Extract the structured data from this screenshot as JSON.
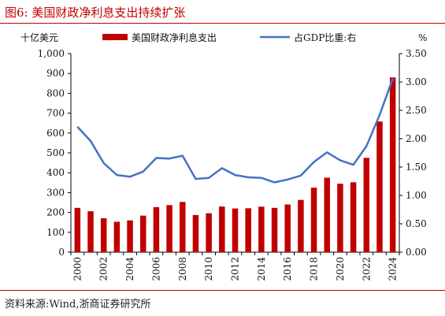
{
  "figure": {
    "title": "图6:  美国财政净利息支出持续扩张",
    "source": "资料来源:Wind,浙商证券研究所"
  },
  "chart_data": {
    "type": "bar",
    "x": [
      2000,
      2001,
      2002,
      2003,
      2004,
      2005,
      2006,
      2007,
      2008,
      2009,
      2010,
      2011,
      2012,
      2013,
      2014,
      2015,
      2016,
      2017,
      2018,
      2019,
      2020,
      2021,
      2022,
      2023,
      2024
    ],
    "x_tick_labels": [
      "2000",
      "2002",
      "2004",
      "2006",
      "2008",
      "2010",
      "2012",
      "2014",
      "2016",
      "2018",
      "2020",
      "2022",
      "2024"
    ],
    "series": [
      {
        "name": "美国财政净利息支出",
        "type": "bar",
        "axis": "left",
        "color": "#c00000",
        "values": [
          223,
          206,
          171,
          153,
          160,
          184,
          227,
          237,
          253,
          187,
          196,
          230,
          220,
          221,
          229,
          223,
          240,
          263,
          325,
          375,
          345,
          352,
          475,
          658,
          880
        ]
      },
      {
        "name": "占GDP比重:右",
        "type": "line",
        "axis": "right",
        "color": "#4472c4",
        "values": [
          2.21,
          1.96,
          1.57,
          1.36,
          1.33,
          1.42,
          1.66,
          1.65,
          1.7,
          1.29,
          1.31,
          1.48,
          1.36,
          1.32,
          1.31,
          1.23,
          1.28,
          1.35,
          1.59,
          1.76,
          1.62,
          1.54,
          1.87,
          2.42,
          3.06
        ]
      }
    ],
    "left_axis": {
      "unit_label": "十亿美元",
      "min": 0,
      "max": 1000,
      "step": 100,
      "ticks": [
        "0",
        "100",
        "200",
        "300",
        "400",
        "500",
        "600",
        "700",
        "800",
        "900",
        "1,000"
      ]
    },
    "right_axis": {
      "unit_label": "%",
      "min": 0,
      "max": 3.5,
      "step": 0.5,
      "ticks": [
        "0.00",
        "0.50",
        "1.00",
        "1.50",
        "2.00",
        "2.50",
        "3.00",
        "3.50"
      ]
    },
    "grid": false,
    "legend_placement": "top"
  }
}
